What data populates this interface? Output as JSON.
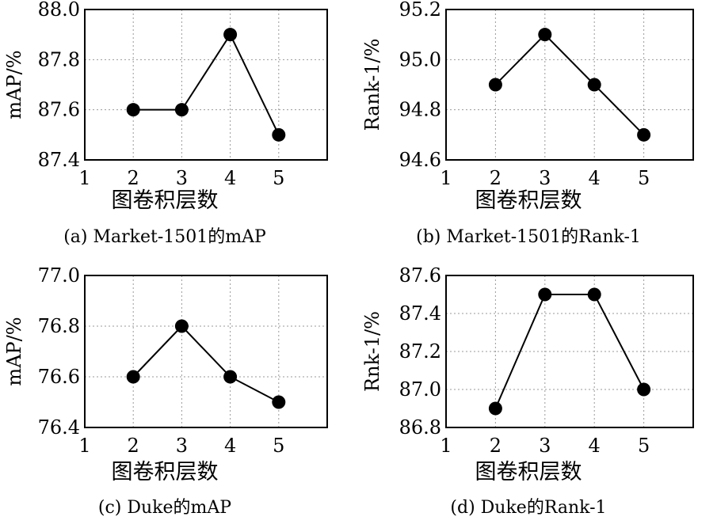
{
  "chart_data": [
    {
      "type": "line",
      "caption": "(a) Market-1501的mAP",
      "xlabel": "图卷积层数",
      "ylabel": "mAP/%",
      "x_ticks": [
        1,
        2,
        3,
        4,
        5
      ],
      "xlim": [
        1,
        6
      ],
      "y_ticks": [
        "87.4",
        "87.6",
        "87.8",
        "88.0"
      ],
      "ylim": [
        87.4,
        88.0
      ],
      "grid": true,
      "x": [
        2,
        3,
        4,
        5
      ],
      "values": [
        87.6,
        87.6,
        87.9,
        87.5
      ]
    },
    {
      "type": "line",
      "caption": "(b) Market-1501的Rank-1",
      "xlabel": "图卷积层数",
      "ylabel": "Rank-1/%",
      "x_ticks": [
        1,
        2,
        3,
        4,
        5
      ],
      "xlim": [
        1,
        6
      ],
      "y_ticks": [
        "94.6",
        "94.8",
        "95.0",
        "95.2"
      ],
      "ylim": [
        94.6,
        95.2
      ],
      "grid": true,
      "x": [
        2,
        3,
        4,
        5
      ],
      "values": [
        94.9,
        95.1,
        94.9,
        94.7
      ]
    },
    {
      "type": "line",
      "caption": "(c) Duke的mAP",
      "xlabel": "图卷积层数",
      "ylabel": "mAP/%",
      "x_ticks": [
        1,
        2,
        3,
        4,
        5
      ],
      "xlim": [
        1,
        6
      ],
      "y_ticks": [
        "76.4",
        "76.6",
        "76.8",
        "77.0"
      ],
      "ylim": [
        76.4,
        77.0
      ],
      "grid": true,
      "x": [
        2,
        3,
        4,
        5
      ],
      "values": [
        76.6,
        76.8,
        76.6,
        76.5
      ]
    },
    {
      "type": "line",
      "caption": "(d) Duke的Rank-1",
      "xlabel": "图卷积层数",
      "ylabel": "Rnk-1/%",
      "x_ticks": [
        1,
        2,
        3,
        4,
        5
      ],
      "xlim": [
        1,
        6
      ],
      "y_ticks": [
        "86.8",
        "87.0",
        "87.2",
        "87.4",
        "87.6"
      ],
      "ylim": [
        86.8,
        87.6
      ],
      "grid": true,
      "x": [
        2,
        3,
        4,
        5
      ],
      "values": [
        86.9,
        87.5,
        87.5,
        87.0
      ]
    }
  ]
}
